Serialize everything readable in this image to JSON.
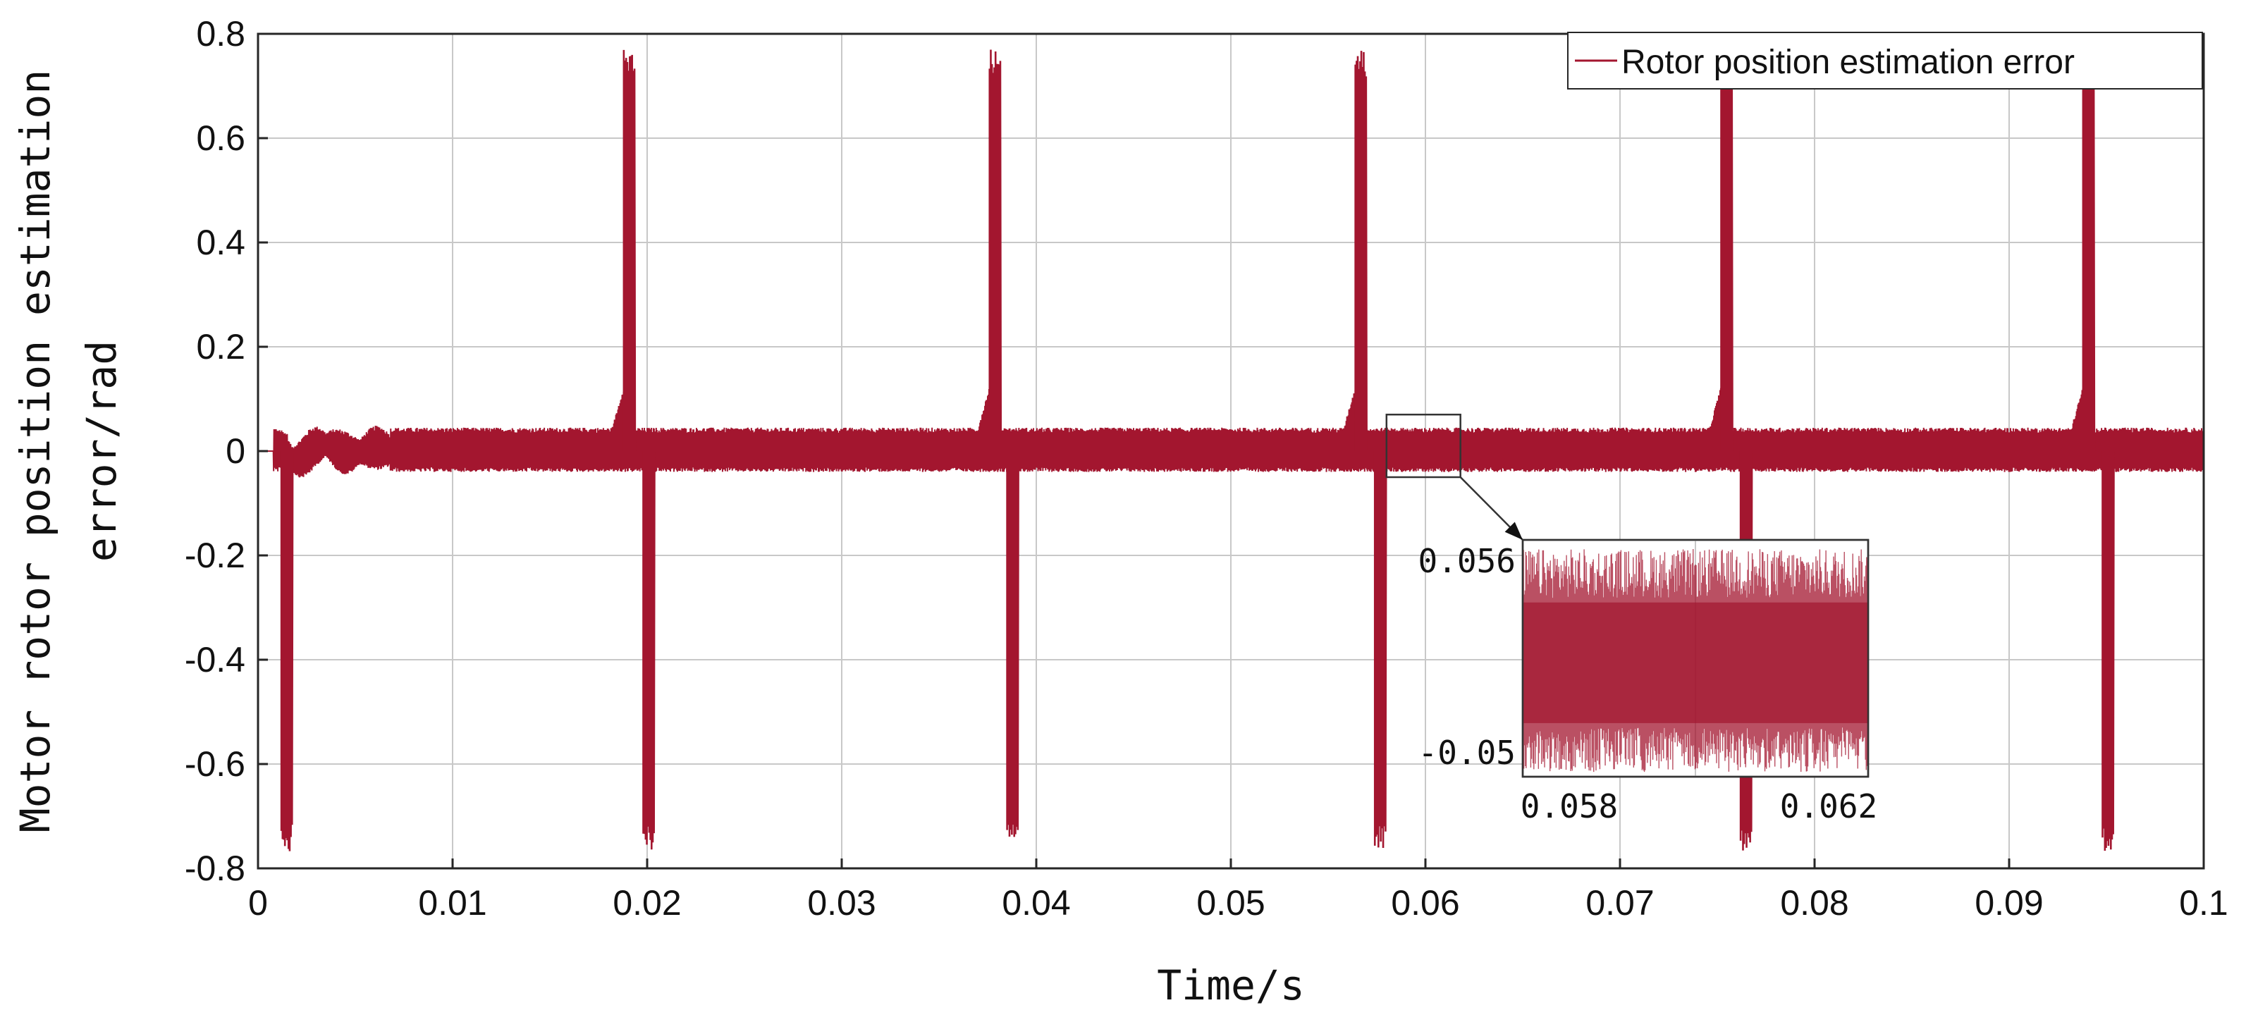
{
  "chart_data": {
    "type": "line",
    "title": "",
    "xlabel": "Time/s",
    "ylabel_lines": [
      "Motor rotor position estimation",
      "error/rad"
    ],
    "xlim": [
      0,
      0.1
    ],
    "ylim": [
      -0.8,
      0.8
    ],
    "x_ticks": [
      "0",
      "0.01",
      "0.02",
      "0.03",
      "0.04",
      "0.05",
      "0.06",
      "0.07",
      "0.08",
      "0.09",
      "0.1"
    ],
    "y_ticks": [
      "0.8",
      "0.6",
      "0.4",
      "0.2",
      "0",
      "-0.2",
      "-0.4",
      "-0.6",
      "-0.8"
    ],
    "grid": true,
    "legend": {
      "position": "top-right",
      "entries": [
        "Rotor position estimation error"
      ]
    },
    "series": [
      {
        "name": "Rotor position estimation error",
        "color": "#a3162f",
        "steady_band": [
          -0.04,
          0.045
        ],
        "peak_positive": 0.77,
        "peak_negative": -0.77,
        "events": [
          {
            "positive_spike_t": null,
            "negative_spike_t": 0.0012
          },
          {
            "positive_spike_t": 0.0188,
            "negative_spike_t": 0.0198
          },
          {
            "positive_spike_t": 0.0376,
            "negative_spike_t": 0.0385
          },
          {
            "positive_spike_t": 0.0564,
            "negative_spike_t": 0.0574
          },
          {
            "positive_spike_t": 0.0752,
            "negative_spike_t": 0.0762
          },
          {
            "positive_spike_t": 0.0938,
            "negative_spike_t": 0.0948
          }
        ]
      }
    ],
    "inset": {
      "zoom_xlim": [
        0.058,
        0.0618
      ],
      "zoom_ylim": [
        -0.05,
        0.056
      ],
      "x_ticks": [
        "0.058",
        "0.062"
      ],
      "y_ticks": [
        "0.056",
        "-0.05"
      ]
    }
  }
}
